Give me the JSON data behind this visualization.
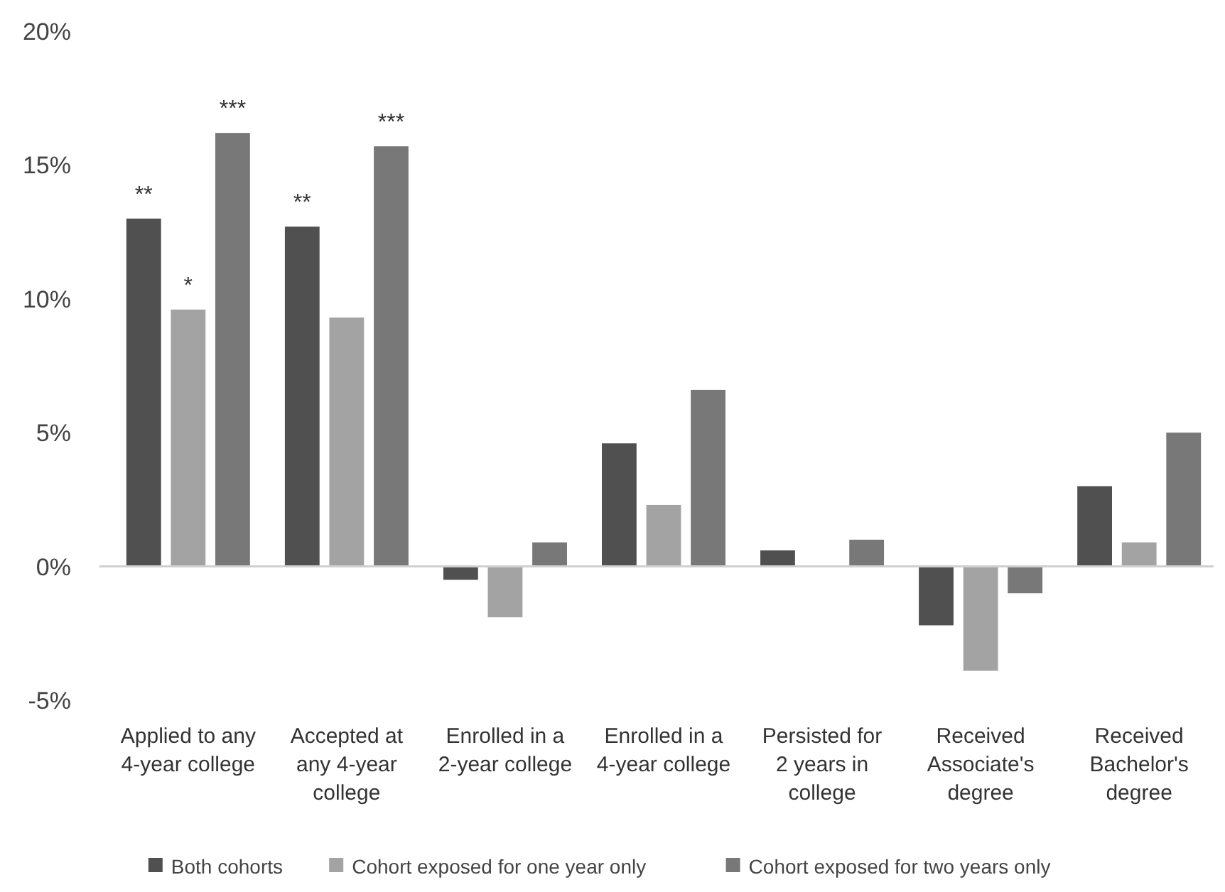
{
  "chart_data": {
    "type": "bar",
    "categories": [
      "Applied to any 4-year college",
      "Accepted at any 4-year college",
      "Enrolled in a 2-year college",
      "Enrolled in a 4-year college",
      "Persisted for 2 years in college",
      "Received Associate's degree",
      "Received Bachelor's degree"
    ],
    "series": [
      {
        "name": "Both cohorts",
        "color": "#505050",
        "values": [
          13.0,
          12.7,
          -0.5,
          4.6,
          0.6,
          -2.2,
          3.0
        ]
      },
      {
        "name": "Cohort exposed for one year only",
        "color": "#a3a3a3",
        "values": [
          9.6,
          9.3,
          -1.9,
          2.3,
          0,
          -3.9,
          0.9
        ]
      },
      {
        "name": "Cohort exposed for two years only",
        "color": "#787878",
        "values": [
          16.2,
          15.7,
          0.9,
          6.6,
          1.0,
          -1.0,
          5.0
        ]
      }
    ],
    "ylim": [
      -5,
      20
    ],
    "yticks": [
      {
        "value": -5,
        "label": "-5%"
      },
      {
        "value": 0,
        "label": "0%"
      },
      {
        "value": 5,
        "label": "5%"
      },
      {
        "value": 10,
        "label": "10%"
      },
      {
        "value": 15,
        "label": "15%"
      },
      {
        "value": 20,
        "label": "20%"
      }
    ],
    "annotations": [
      "**",
      "*",
      "***",
      "**",
      "***"
    ],
    "legend": "bottom"
  }
}
